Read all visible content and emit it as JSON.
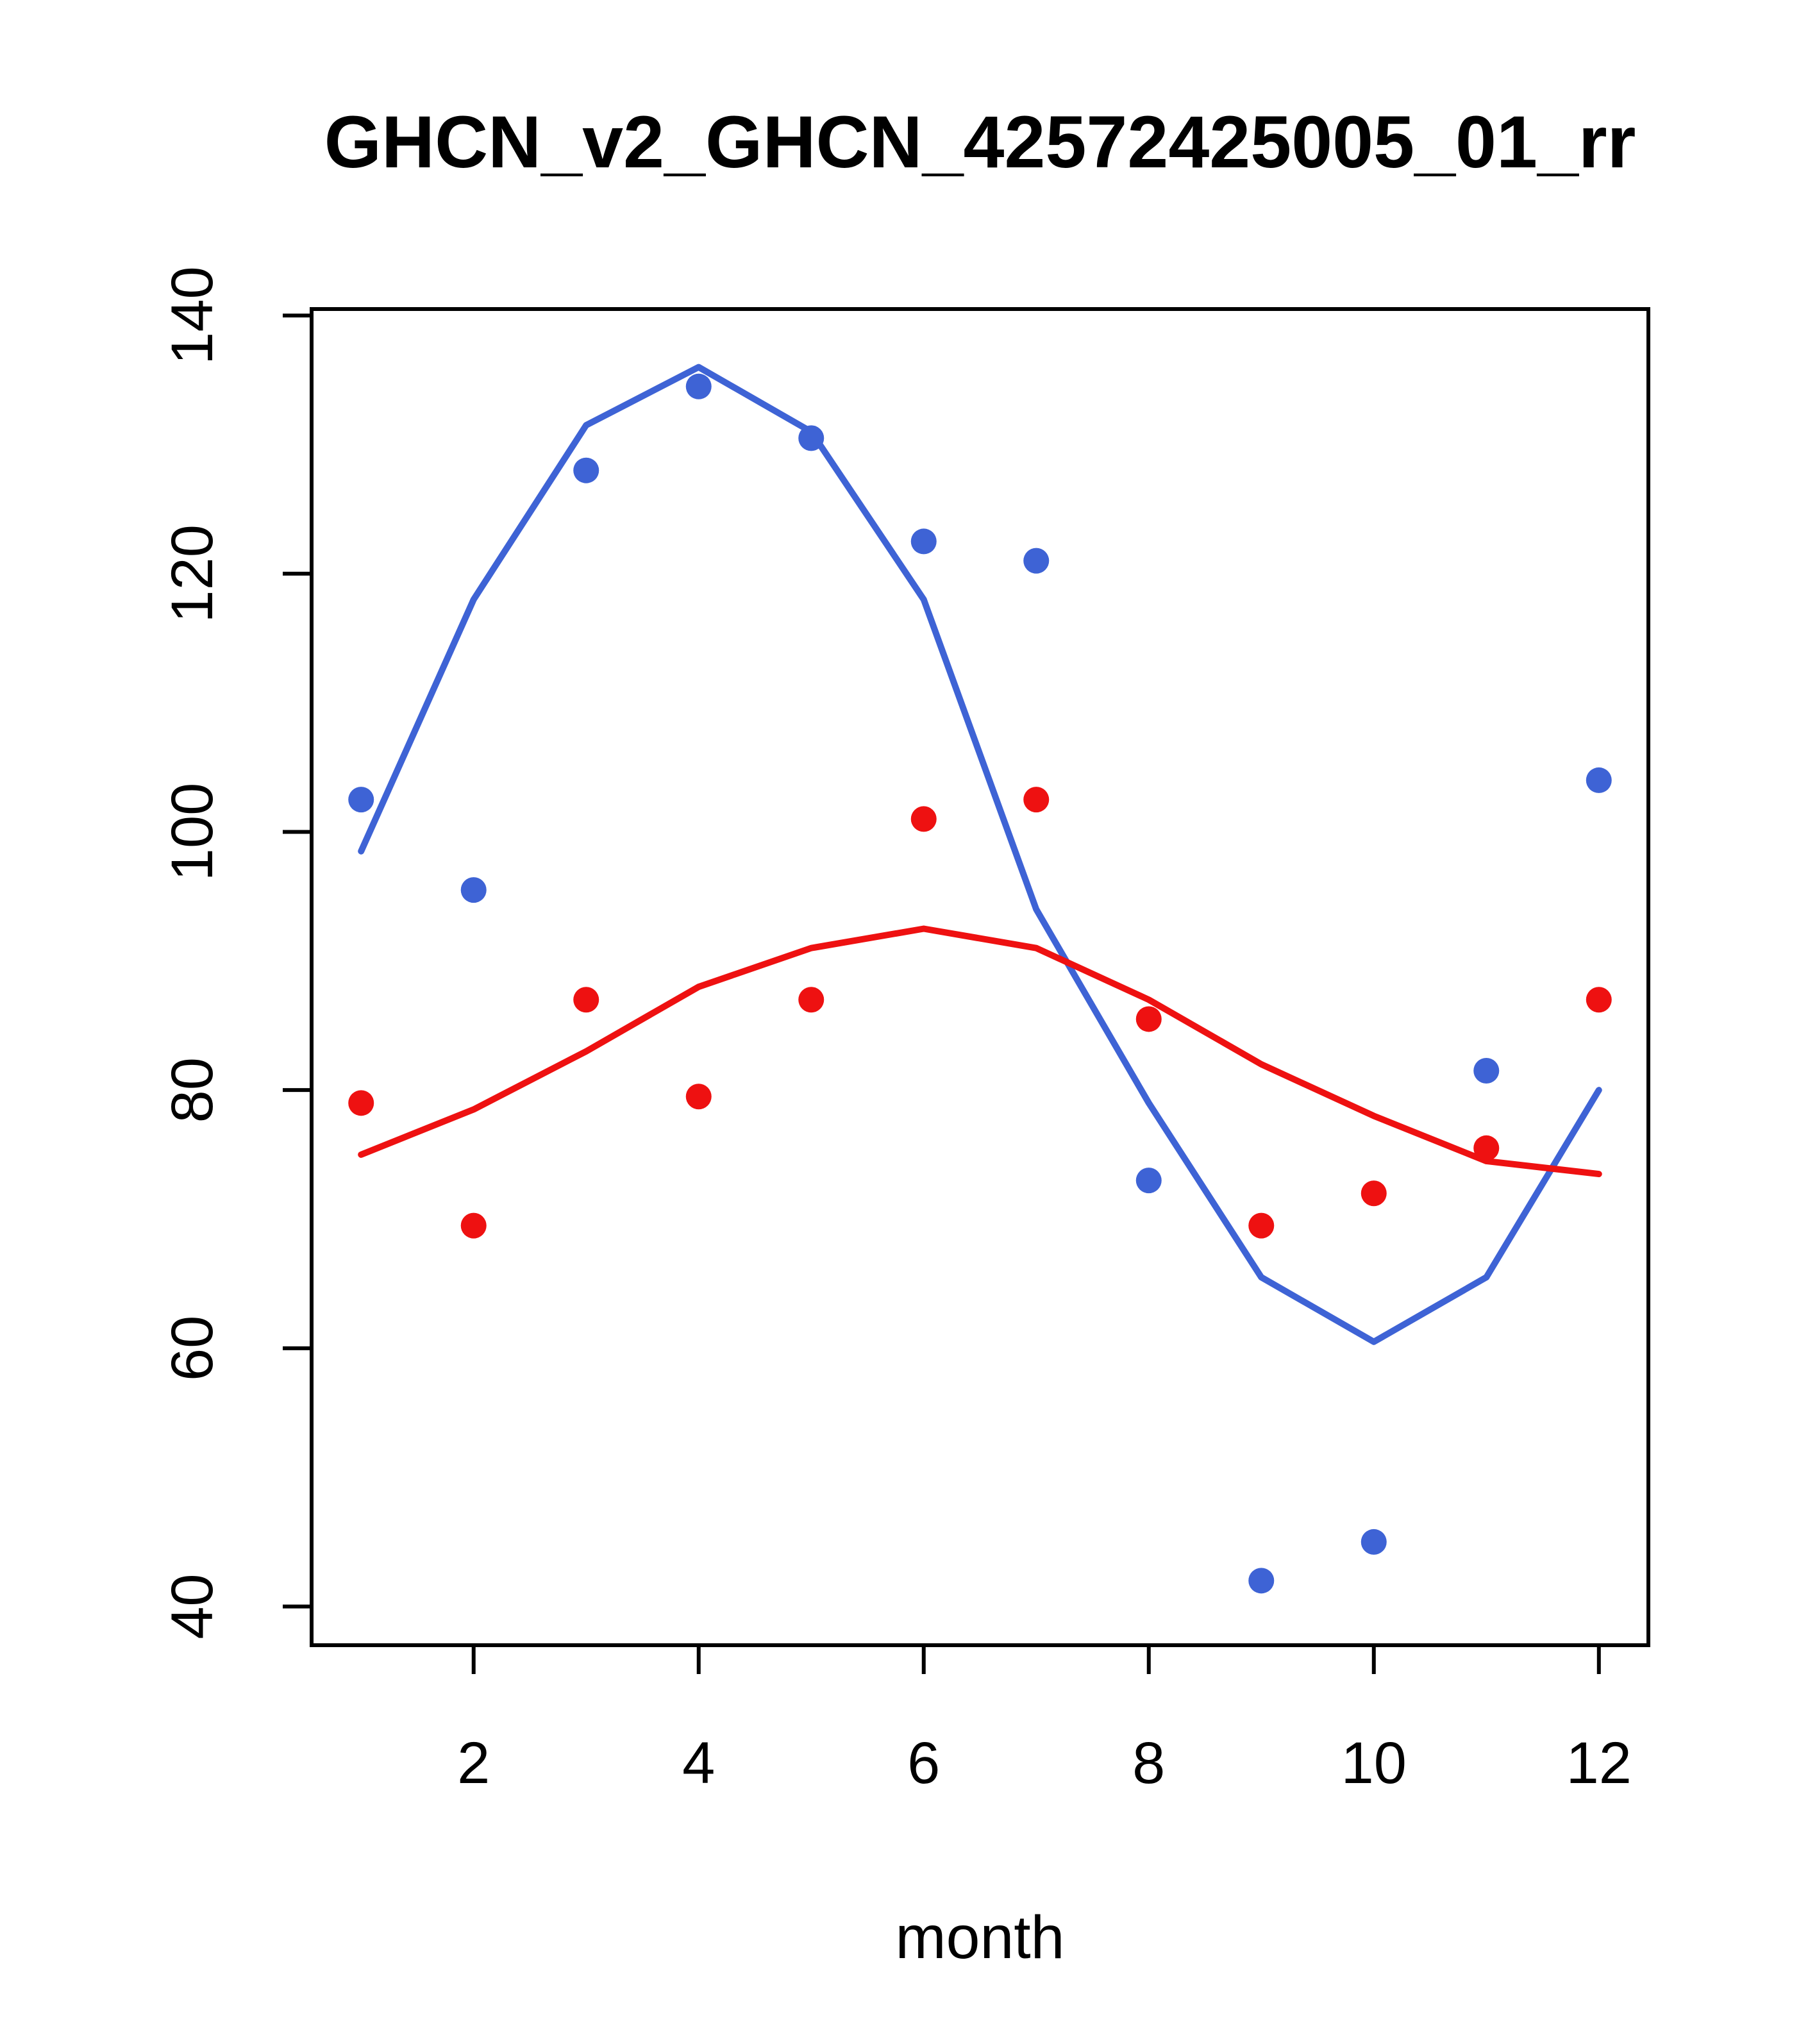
{
  "chart_data": {
    "type": "scatter",
    "title": "GHCN_v2_GHCN_42572425005_01_rr",
    "xlabel": "month",
    "ylabel": "",
    "xlim": [
      0.56,
      12.44
    ],
    "ylim": [
      37,
      140.5
    ],
    "x_ticks": [
      2,
      4,
      6,
      8,
      10,
      12
    ],
    "y_ticks": [
      40,
      60,
      80,
      100,
      120,
      140
    ],
    "grid": false,
    "legend": "none",
    "x": [
      1,
      2,
      3,
      4,
      5,
      6,
      7,
      8,
      9,
      10,
      11,
      12
    ],
    "series": [
      {
        "name": "blue-points",
        "draw": "points",
        "color": "#3E63D5",
        "values": [
          102.5,
          95.5,
          128,
          134.5,
          130.5,
          122.5,
          121,
          73,
          42,
          45,
          81.5,
          104
        ]
      },
      {
        "name": "blue-smooth-line",
        "draw": "line",
        "color": "#3E63D5",
        "values": [
          98.5,
          118,
          131.5,
          136,
          131,
          118,
          94,
          79,
          65.5,
          60.5,
          65.5,
          80
        ]
      },
      {
        "name": "red-points",
        "draw": "points",
        "color": "#EE1111",
        "values": [
          79,
          69.5,
          87,
          79.5,
          87,
          101,
          102.5,
          85.5,
          69.5,
          72,
          75.5,
          87
        ]
      },
      {
        "name": "red-smooth-line",
        "draw": "line",
        "color": "#EE1111",
        "values": [
          75,
          78.5,
          83,
          88,
          91,
          92.5,
          91,
          87,
          82,
          78,
          74.5,
          73.5
        ]
      }
    ],
    "colors": {
      "blue": "#3E63D5",
      "red": "#EE1111",
      "axis": "#000000",
      "background": "#FFFFFF"
    }
  }
}
